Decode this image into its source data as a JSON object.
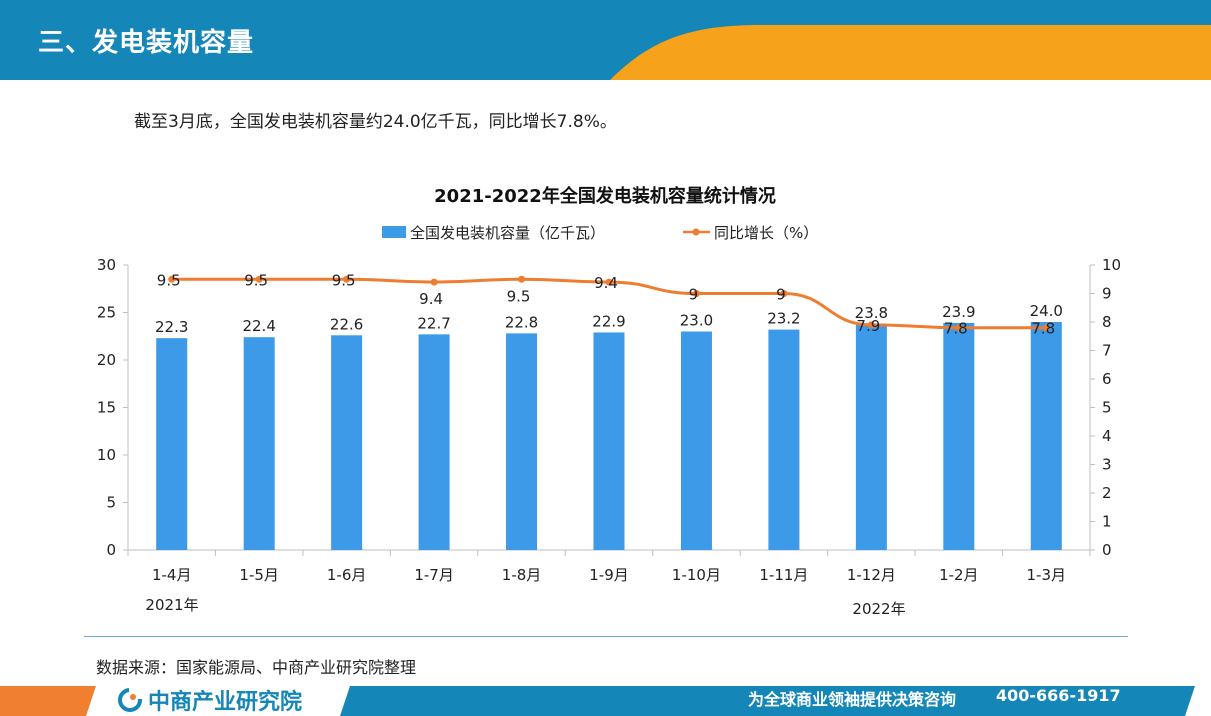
{
  "header": {
    "title": "三、发电装机容量"
  },
  "summary": "截至3月底，全国发电装机容量约24.0亿千瓦，同比增长7.8%。",
  "source": "数据来源：国家能源局、中商产业研究院整理",
  "footer": {
    "logo_text": "中商产业研究院",
    "slogan": "为全球商业领袖提供决策咨询",
    "phone": "400-666-1917"
  },
  "colors": {
    "header_bg": "#1586b8",
    "header_accent": "#f7a21b",
    "bar": "#3d9ae8",
    "line": "#ed7d31",
    "footer_left": "#f08030",
    "footer_bg": "#1586b8"
  },
  "chart_data": {
    "type": "bar",
    "title": "2021-2022年全国发电装机容量统计情况",
    "categories": [
      "1-4月",
      "1-5月",
      "1-6月",
      "1-7月",
      "1-8月",
      "1-9月",
      "1-10月",
      "1-11月",
      "1-12月",
      "1-2月",
      "1-3月"
    ],
    "year_labels": [
      "2021年",
      "2022年"
    ],
    "series": [
      {
        "name": "全国发电装机容量（亿千瓦）",
        "type": "bar",
        "axis": "left",
        "values": [
          22.3,
          22.4,
          22.6,
          22.7,
          22.8,
          22.9,
          23.0,
          23.2,
          23.8,
          23.9,
          24.0
        ],
        "labels": [
          "22.3",
          "22.4",
          "22.6",
          "22.7",
          "22.8",
          "22.9",
          "23.0",
          "23.2",
          "23.8",
          "23.9",
          "24.0"
        ]
      },
      {
        "name": "同比增长（%）",
        "type": "line",
        "axis": "right",
        "values": [
          9.5,
          9.5,
          9.5,
          9.4,
          9.5,
          9.4,
          9,
          9,
          7.9,
          7.8,
          7.8
        ],
        "labels": [
          "9.5",
          "9.5",
          "9.5",
          "9.4",
          "9.5",
          "9.4",
          "9",
          "9",
          "7.9",
          "7.8",
          "7.8"
        ]
      }
    ],
    "ylim_left": [
      0,
      30
    ],
    "yticks_left": [
      "0",
      "5",
      "10",
      "15",
      "20",
      "25",
      "30"
    ],
    "ylim_right": [
      0,
      10
    ],
    "yticks_right": [
      "0",
      "1",
      "2",
      "3",
      "4",
      "5",
      "6",
      "7",
      "8",
      "9",
      "10"
    ],
    "legend": "top-center",
    "grid": false
  }
}
